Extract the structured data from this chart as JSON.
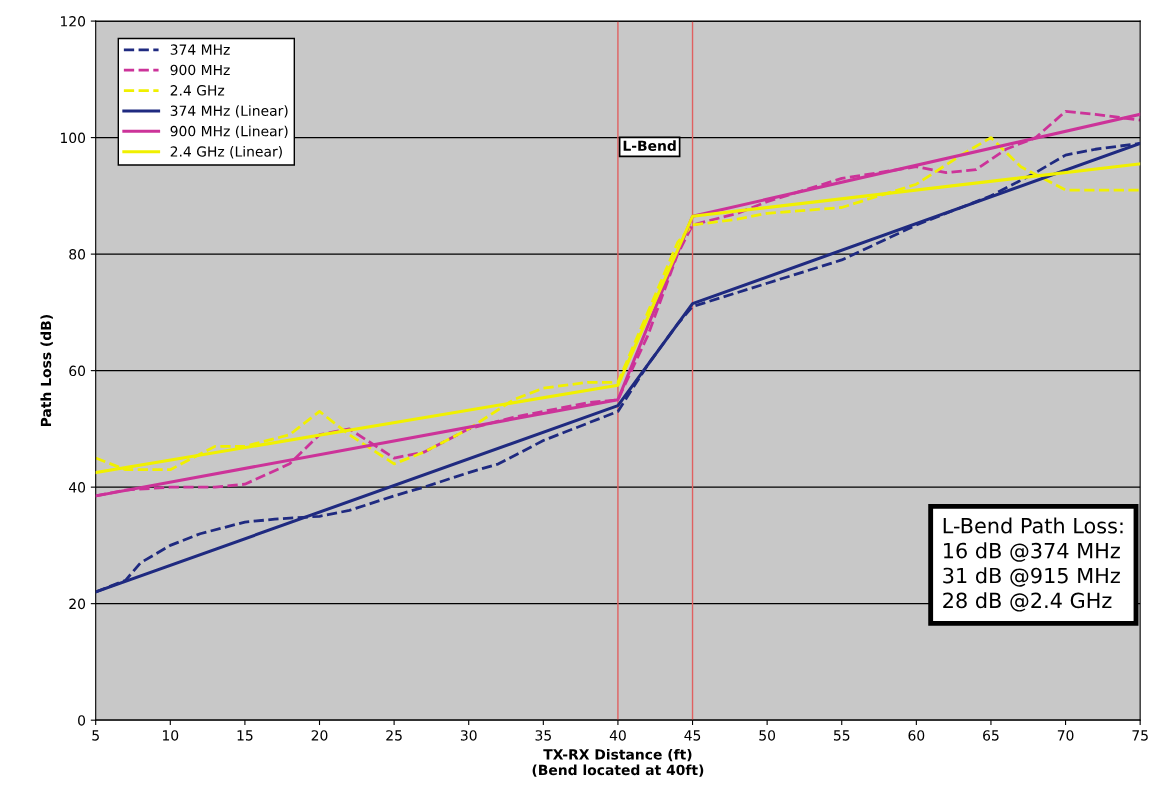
{
  "chart_data": {
    "type": "line",
    "xlabel": "TX-RX Distance (ft)\n(Bend located at 40ft)",
    "ylabel": "Path Loss (dB)",
    "xlim": [
      5,
      75
    ],
    "xticks": [
      5,
      10,
      15,
      20,
      25,
      30,
      35,
      40,
      45,
      50,
      55,
      60,
      65,
      70,
      75
    ],
    "ylim": [
      0,
      120
    ],
    "yticks": [
      0,
      20,
      40,
      60,
      80,
      100,
      120
    ],
    "grid": "y",
    "legend": "top left",
    "marker": "none",
    "ref_lines": [
      {
        "axis": "x",
        "value": 40,
        "label": "L-Bend",
        "color": "#e06060"
      },
      {
        "axis": "x",
        "value": 45,
        "color": "#e06060"
      }
    ],
    "annotations": [
      "L-Bend Path Loss:\n16 dB @374 MHz\n31 dB @915 MHz\n28 dB @2.4 GHz"
    ],
    "series": [
      {
        "name": "374 MHz",
        "color": "#1f2a80",
        "line_style": "dashed",
        "x": [
          5,
          7,
          8,
          10,
          12,
          15,
          17,
          20,
          22,
          25,
          27,
          30,
          32,
          35,
          37,
          40,
          42,
          44,
          45,
          50,
          55,
          60,
          65,
          68,
          70,
          72,
          75
        ],
        "values": [
          22,
          24,
          27,
          30,
          32,
          34,
          34.5,
          35,
          36,
          38.5,
          40,
          42.5,
          44,
          48,
          50,
          53,
          61,
          68,
          71,
          75,
          79,
          85,
          90,
          94,
          97,
          98,
          99
        ]
      },
      {
        "name": "900 MHz",
        "color": "#cc3399",
        "line_style": "dashed",
        "x": [
          5,
          7,
          10,
          13,
          15,
          18,
          20,
          22,
          25,
          27,
          30,
          33,
          35,
          38,
          40,
          42,
          44,
          45,
          48,
          50,
          55,
          60,
          62,
          64,
          66,
          68,
          70,
          72,
          75
        ],
        "values": [
          38.5,
          39.5,
          40,
          40,
          40.5,
          44,
          49,
          50,
          45,
          46,
          50,
          52,
          53,
          54.5,
          55,
          66,
          80,
          85,
          87,
          89,
          93,
          95,
          94,
          94.5,
          98,
          100,
          104.5,
          104,
          103
        ]
      },
      {
        "name": "2.4 GHz",
        "color": "#f0f000",
        "line_style": "dashed",
        "x": [
          5,
          7,
          10,
          13,
          15,
          18,
          20,
          22,
          25,
          27,
          30,
          33,
          35,
          38,
          40,
          42,
          44,
          45,
          48,
          50,
          55,
          60,
          63,
          65,
          67,
          70,
          72,
          75
        ],
        "values": [
          45,
          43,
          43,
          47,
          47,
          49,
          53,
          49,
          44,
          46,
          50,
          55,
          57,
          58,
          58,
          70,
          82,
          85,
          86,
          87,
          88,
          92,
          97,
          100,
          95,
          91,
          91,
          91
        ]
      },
      {
        "name": "374 MHz (Linear)",
        "color": "#1f2a80",
        "line_style": "solid",
        "x": [
          5,
          40,
          45,
          75
        ],
        "values": [
          22,
          54,
          71.5,
          99
        ]
      },
      {
        "name": "900 MHz (Linear)",
        "color": "#cc3399",
        "line_style": "solid",
        "x": [
          5,
          40,
          45,
          75
        ],
        "values": [
          38.5,
          55,
          86.5,
          104
        ]
      },
      {
        "name": "2.4 GHz (Linear)",
        "color": "#f0f000",
        "line_style": "solid",
        "x": [
          5,
          40,
          45,
          75
        ],
        "values": [
          42.5,
          57.5,
          86.5,
          95.5
        ]
      }
    ]
  }
}
